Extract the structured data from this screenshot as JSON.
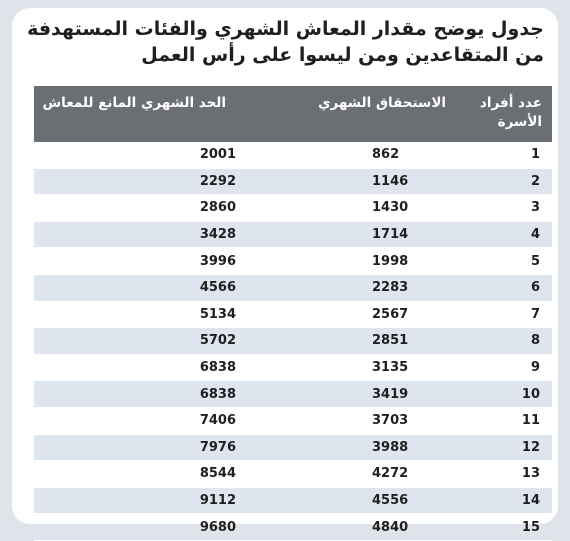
{
  "title": "جدول يوضح مقدار المعاش الشهري والفئات المستهدفة من المتقاعدين ومن ليسوا على رأس العمل",
  "table": {
    "headers": [
      "عدد أفراد الأسرة",
      "الاستحقاق الشهري",
      "الحد الشهري المانع للمعاش"
    ],
    "rows": [
      [
        "1",
        "862",
        "2001"
      ],
      [
        "2",
        "1146",
        "2292"
      ],
      [
        "3",
        "1430",
        "2860"
      ],
      [
        "4",
        "1714",
        "3428"
      ],
      [
        "5",
        "1998",
        "3996"
      ],
      [
        "6",
        "2283",
        "4566"
      ],
      [
        "7",
        "2567",
        "5134"
      ],
      [
        "8",
        "2851",
        "5702"
      ],
      [
        "9",
        "3135",
        "6838"
      ],
      [
        "10",
        "3419",
        "6838"
      ],
      [
        "11",
        "3703",
        "7406"
      ],
      [
        "12",
        "3988",
        "7976"
      ],
      [
        "13",
        "4272",
        "8544"
      ],
      [
        "14",
        "4556",
        "9112"
      ],
      [
        "15",
        "4840",
        "9680"
      ]
    ]
  },
  "colors": {
    "header_bg": "#6b6f74",
    "stripe": "#dfe5ee",
    "frame": "#dfe4ea"
  }
}
